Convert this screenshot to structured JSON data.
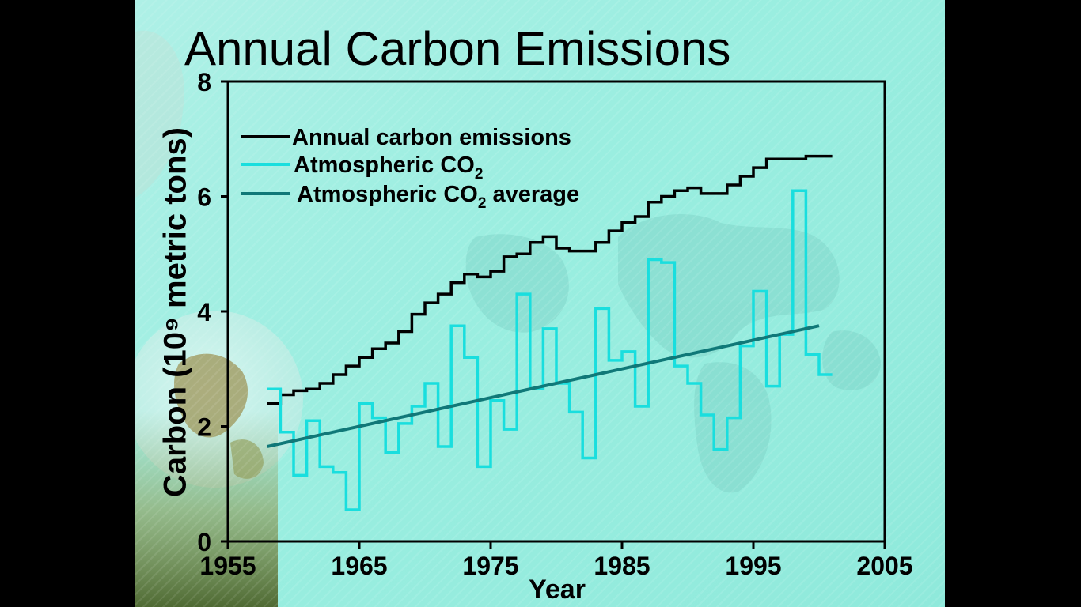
{
  "chart_data": {
    "type": "line",
    "title": "Annual Carbon Emissions",
    "ylabel": "Carbon (10⁹ metric tons)",
    "xlabel": "Year",
    "xlim": [
      1955,
      2005
    ],
    "ylim": [
      0,
      8
    ],
    "x_ticks": [
      "1955",
      "1965",
      "1975",
      "1985",
      "1995",
      "2005"
    ],
    "y_ticks": [
      "0",
      "2",
      "4",
      "6",
      "8"
    ],
    "legend_position": "top-left",
    "grid": false,
    "series": [
      {
        "name": "Annual carbon emissions",
        "style": "step",
        "color": "#000000",
        "x": [
          1958,
          1959,
          1960,
          1961,
          1962,
          1963,
          1964,
          1965,
          1966,
          1967,
          1968,
          1969,
          1970,
          1971,
          1972,
          1973,
          1974,
          1975,
          1976,
          1977,
          1978,
          1979,
          1980,
          1981,
          1982,
          1983,
          1984,
          1985,
          1986,
          1987,
          1988,
          1989,
          1990,
          1991,
          1992,
          1993,
          1994,
          1995,
          1996,
          1997,
          1998,
          1999,
          2000
        ],
        "values": [
          2.4,
          2.55,
          2.62,
          2.65,
          2.75,
          2.9,
          3.05,
          3.2,
          3.35,
          3.45,
          3.65,
          3.95,
          4.15,
          4.3,
          4.5,
          4.65,
          4.6,
          4.7,
          4.95,
          5.0,
          5.2,
          5.3,
          5.1,
          5.05,
          5.05,
          5.2,
          5.4,
          5.55,
          5.65,
          5.9,
          6.0,
          6.1,
          6.15,
          6.05,
          6.05,
          6.2,
          6.35,
          6.5,
          6.65,
          6.65,
          6.65,
          6.7,
          6.7
        ]
      },
      {
        "name": "Atmospheric CO2",
        "style": "step",
        "color": "#19dede",
        "x": [
          1958,
          1959,
          1960,
          1961,
          1962,
          1963,
          1964,
          1965,
          1966,
          1967,
          1968,
          1969,
          1970,
          1971,
          1972,
          1973,
          1974,
          1975,
          1976,
          1977,
          1978,
          1979,
          1980,
          1981,
          1982,
          1983,
          1984,
          1985,
          1986,
          1987,
          1988,
          1989,
          1990,
          1991,
          1992,
          1993,
          1994,
          1995,
          1996,
          1997,
          1998,
          1999,
          2000
        ],
        "values": [
          2.65,
          1.9,
          1.15,
          2.1,
          1.3,
          1.2,
          0.55,
          2.4,
          2.15,
          1.55,
          2.05,
          2.35,
          2.75,
          1.65,
          3.75,
          3.2,
          1.3,
          2.45,
          1.95,
          4.3,
          2.65,
          3.7,
          2.75,
          2.25,
          1.45,
          4.05,
          3.15,
          3.3,
          2.35,
          4.9,
          4.85,
          3.05,
          2.75,
          2.2,
          1.6,
          2.15,
          3.4,
          4.35,
          2.7,
          3.6,
          6.1,
          3.25,
          2.9
        ]
      },
      {
        "name": "Atmospheric CO2 average",
        "style": "line",
        "color": "#107878",
        "x": [
          1958,
          2000
        ],
        "values": [
          1.65,
          3.75
        ]
      }
    ]
  },
  "legend": [
    {
      "label": "Annual carbon emissions",
      "color": "#000000"
    },
    {
      "label": "Atmospheric CO",
      "sub": "2",
      "color": "#19dede"
    },
    {
      "label": "Atmospheric CO",
      "sub": "2",
      "suffix": " average",
      "color": "#107878"
    }
  ]
}
